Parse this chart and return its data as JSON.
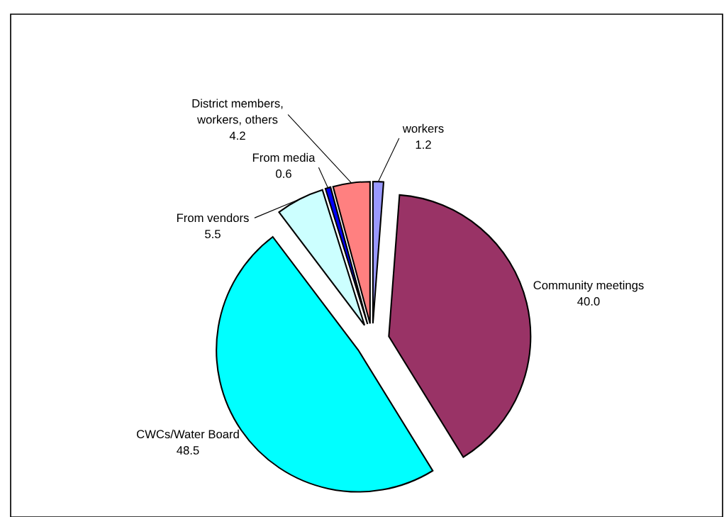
{
  "chart_data": {
    "type": "pie",
    "categories": [
      "workers",
      "Community meetings",
      "CWCs/Water Board",
      "From vendors",
      "From media",
      "District members,\nworkers, others"
    ],
    "values": [
      1.2,
      40.0,
      48.5,
      5.5,
      0.6,
      4.2
    ],
    "value_labels": [
      "1.2",
      "40.0",
      "48.5",
      "5.5",
      "0.6",
      "4.2"
    ],
    "colors": [
      "#9999ff",
      "#993366",
      "#00ffff",
      "#ccffff",
      "#0000ff",
      "#ff8080"
    ],
    "legend": false
  }
}
